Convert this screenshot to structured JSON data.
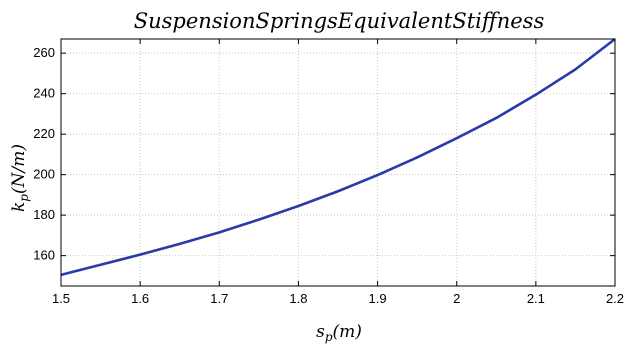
{
  "chart_data": {
    "type": "line",
    "title": "SuspensionSpringsEquivalentStiffness",
    "xlabel": {
      "base": "s",
      "sub": "p",
      "rest": "(m)"
    },
    "ylabel": {
      "base": "k",
      "sub": "p",
      "rest": "(N/m)"
    },
    "xlim": [
      1.5,
      2.2
    ],
    "ylim": [
      145,
      267
    ],
    "xticks": [
      1.5,
      1.6,
      1.7,
      1.8,
      1.9,
      2.0,
      2.1,
      2.2
    ],
    "xtick_labels": [
      "1.5",
      "1.6",
      "1.7",
      "1.8",
      "1.9",
      "2",
      "2.1",
      "2.2"
    ],
    "yticks": [
      160,
      180,
      200,
      220,
      240,
      260
    ],
    "ytick_labels": [
      "160",
      "180",
      "200",
      "220",
      "240",
      "260"
    ],
    "grid": true,
    "series": [
      {
        "color": "#2a3ba8",
        "x": [
          1.5,
          1.55,
          1.6,
          1.65,
          1.7,
          1.75,
          1.8,
          1.85,
          1.9,
          1.95,
          2.0,
          2.05,
          2.1,
          2.15,
          2.2
        ],
        "y": [
          150.5,
          155.5,
          160.5,
          165.8,
          171.5,
          177.8,
          184.5,
          191.8,
          199.8,
          208.5,
          218.0,
          228.0,
          239.5,
          252.0,
          267.0
        ]
      }
    ]
  }
}
